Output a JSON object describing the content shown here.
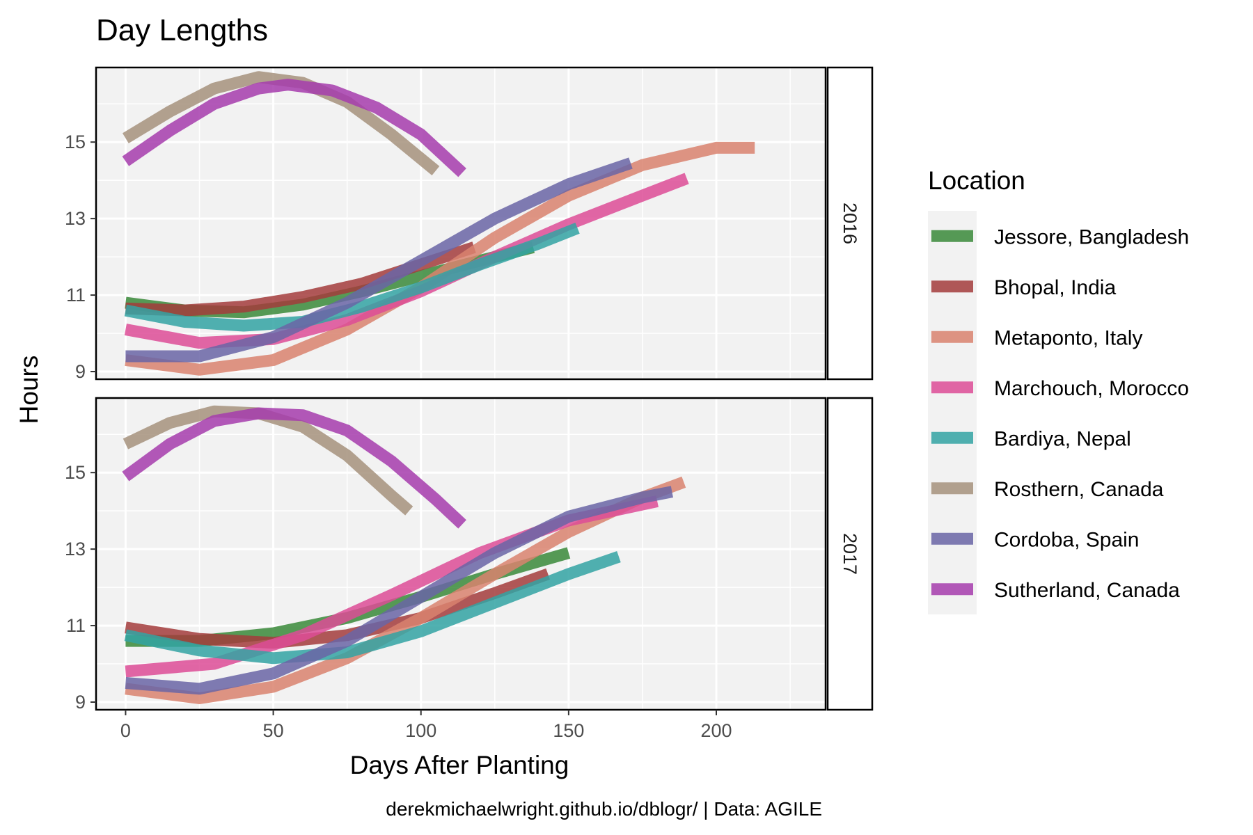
{
  "chart_data": {
    "type": "line",
    "title": "Day Lengths",
    "xlabel": "Days After Planting",
    "ylabel": "Hours",
    "caption": "derekmichaelwright.github.io/dblogr/ | Data: AGILE",
    "xlim": [
      -10,
      237
    ],
    "xticks": [
      0,
      50,
      100,
      150,
      200
    ],
    "ylim": [
      8.8,
      16.95
    ],
    "yticks": [
      9,
      11,
      13,
      15
    ],
    "legend": {
      "title": "Location",
      "position": "right",
      "entries": [
        {
          "name": "Jessore, Bangladesh",
          "color": "#3a8a3a"
        },
        {
          "name": "Bhopal, India",
          "color": "#a33c3c"
        },
        {
          "name": "Metaponto, Italy",
          "color": "#d9836f"
        },
        {
          "name": "Marchouch, Morocco",
          "color": "#dd4c97"
        },
        {
          "name": "Bardiya, Nepal",
          "color": "#33a3a3"
        },
        {
          "name": "Rosthern, Canada",
          "color": "#a6927c"
        },
        {
          "name": "Cordoba, Spain",
          "color": "#6a65a6"
        },
        {
          "name": "Sutherland, Canada",
          "color": "#a63cad"
        }
      ]
    },
    "panels": [
      {
        "label": "2016",
        "series": [
          {
            "name": "Rosthern, Canada",
            "points": [
              [
                0,
                15.1
              ],
              [
                15,
                15.8
              ],
              [
                30,
                16.4
              ],
              [
                45,
                16.7
              ],
              [
                60,
                16.55
              ],
              [
                75,
                16.05
              ],
              [
                90,
                15.2
              ],
              [
                105,
                14.25
              ]
            ]
          },
          {
            "name": "Sutherland, Canada",
            "points": [
              [
                0,
                14.5
              ],
              [
                15,
                15.3
              ],
              [
                30,
                16.0
              ],
              [
                45,
                16.4
              ],
              [
                55,
                16.5
              ],
              [
                70,
                16.35
              ],
              [
                85,
                15.9
              ],
              [
                100,
                15.2
              ],
              [
                114,
                14.2
              ]
            ]
          },
          {
            "name": "Jessore, Bangladesh",
            "points": [
              [
                0,
                10.8
              ],
              [
                20,
                10.6
              ],
              [
                40,
                10.55
              ],
              [
                60,
                10.75
              ],
              [
                80,
                11.1
              ],
              [
                100,
                11.5
              ],
              [
                120,
                11.9
              ],
              [
                138,
                12.25
              ]
            ]
          },
          {
            "name": "Bhopal, India",
            "points": [
              [
                0,
                10.65
              ],
              [
                20,
                10.6
              ],
              [
                40,
                10.7
              ],
              [
                60,
                10.95
              ],
              [
                80,
                11.3
              ],
              [
                100,
                11.8
              ],
              [
                118,
                12.25
              ]
            ]
          },
          {
            "name": "Metaponto, Italy",
            "points": [
              [
                0,
                9.3
              ],
              [
                25,
                9.05
              ],
              [
                50,
                9.3
              ],
              [
                75,
                10.1
              ],
              [
                100,
                11.2
              ],
              [
                125,
                12.5
              ],
              [
                150,
                13.6
              ],
              [
                175,
                14.4
              ],
              [
                200,
                14.85
              ],
              [
                213,
                14.85
              ]
            ]
          },
          {
            "name": "Marchouch, Morocco",
            "points": [
              [
                0,
                10.1
              ],
              [
                25,
                9.75
              ],
              [
                50,
                9.85
              ],
              [
                75,
                10.35
              ],
              [
                100,
                11.1
              ],
              [
                125,
                12.0
              ],
              [
                150,
                12.85
              ],
              [
                175,
                13.6
              ],
              [
                190,
                14.05
              ]
            ]
          },
          {
            "name": "Bardiya, Nepal",
            "points": [
              [
                0,
                10.6
              ],
              [
                20,
                10.3
              ],
              [
                40,
                10.2
              ],
              [
                60,
                10.3
              ],
              [
                80,
                10.7
              ],
              [
                100,
                11.2
              ],
              [
                120,
                11.8
              ],
              [
                140,
                12.35
              ],
              [
                153,
                12.75
              ]
            ]
          },
          {
            "name": "Cordoba, Spain",
            "points": [
              [
                0,
                9.4
              ],
              [
                25,
                9.4
              ],
              [
                50,
                9.9
              ],
              [
                75,
                10.8
              ],
              [
                100,
                11.9
              ],
              [
                125,
                13.0
              ],
              [
                150,
                13.9
              ],
              [
                171,
                14.45
              ]
            ]
          }
        ]
      },
      {
        "label": "2017",
        "series": [
          {
            "name": "Rosthern, Canada",
            "points": [
              [
                0,
                15.75
              ],
              [
                15,
                16.3
              ],
              [
                30,
                16.6
              ],
              [
                45,
                16.55
              ],
              [
                60,
                16.2
              ],
              [
                75,
                15.45
              ],
              [
                90,
                14.4
              ],
              [
                96,
                14.0
              ]
            ]
          },
          {
            "name": "Sutherland, Canada",
            "points": [
              [
                0,
                14.9
              ],
              [
                15,
                15.75
              ],
              [
                30,
                16.35
              ],
              [
                45,
                16.55
              ],
              [
                60,
                16.5
              ],
              [
                75,
                16.1
              ],
              [
                90,
                15.3
              ],
              [
                105,
                14.3
              ],
              [
                114,
                13.65
              ]
            ]
          },
          {
            "name": "Jessore, Bangladesh",
            "points": [
              [
                0,
                10.6
              ],
              [
                25,
                10.6
              ],
              [
                50,
                10.8
              ],
              [
                75,
                11.2
              ],
              [
                100,
                11.75
              ],
              [
                125,
                12.35
              ],
              [
                150,
                12.9
              ]
            ]
          },
          {
            "name": "Bhopal, India",
            "points": [
              [
                0,
                10.95
              ],
              [
                25,
                10.65
              ],
              [
                50,
                10.55
              ],
              [
                75,
                10.75
              ],
              [
                100,
                11.2
              ],
              [
                125,
                11.85
              ],
              [
                143,
                12.35
              ]
            ]
          },
          {
            "name": "Metaponto, Italy",
            "points": [
              [
                0,
                9.35
              ],
              [
                25,
                9.1
              ],
              [
                50,
                9.4
              ],
              [
                75,
                10.15
              ],
              [
                100,
                11.2
              ],
              [
                125,
                12.35
              ],
              [
                150,
                13.45
              ],
              [
                175,
                14.35
              ],
              [
                189,
                14.75
              ]
            ]
          },
          {
            "name": "Marchouch, Morocco",
            "points": [
              [
                0,
                9.8
              ],
              [
                30,
                10.0
              ],
              [
                60,
                10.75
              ],
              [
                90,
                11.8
              ],
              [
                120,
                12.9
              ],
              [
                150,
                13.75
              ],
              [
                180,
                14.25
              ]
            ]
          },
          {
            "name": "Bardiya, Nepal",
            "points": [
              [
                0,
                10.75
              ],
              [
                25,
                10.35
              ],
              [
                50,
                10.15
              ],
              [
                75,
                10.3
              ],
              [
                100,
                10.85
              ],
              [
                125,
                11.6
              ],
              [
                150,
                12.35
              ],
              [
                167,
                12.8
              ]
            ]
          },
          {
            "name": "Cordoba, Spain",
            "points": [
              [
                0,
                9.5
              ],
              [
                25,
                9.35
              ],
              [
                50,
                9.75
              ],
              [
                75,
                10.6
              ],
              [
                100,
                11.75
              ],
              [
                125,
                12.9
              ],
              [
                150,
                13.85
              ],
              [
                175,
                14.35
              ],
              [
                185,
                14.5
              ]
            ]
          }
        ]
      }
    ]
  }
}
